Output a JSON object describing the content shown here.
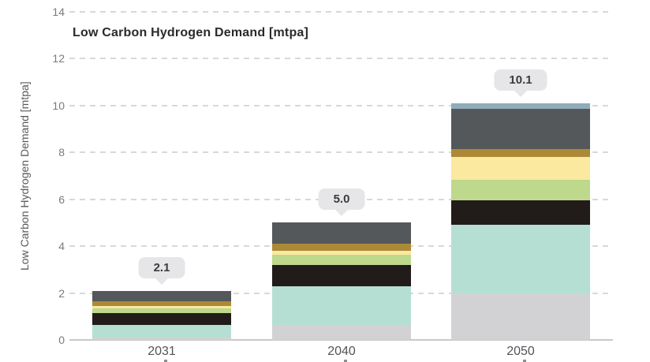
{
  "chart": {
    "title": "Low Carbon Hydrogen Demand [mtpa]",
    "y_axis_label": "Low Carbon Hydrogen Demand [mtpa]"
  },
  "chart_data": {
    "type": "bar",
    "stacked": true,
    "title": "Low Carbon Hydrogen Demand [mtpa]",
    "ylabel": "Low Carbon Hydrogen Demand [mtpa]",
    "xlabel": "",
    "categories": [
      "2031",
      "2040",
      "2050"
    ],
    "totals_labels": [
      "2.1",
      "5.0",
      "10.1"
    ],
    "totals": [
      2.1,
      5.0,
      10.1
    ],
    "ylim": [
      0,
      14
    ],
    "yticks": [
      0,
      2,
      4,
      6,
      8,
      10,
      12,
      14
    ],
    "grid": "horizontal-dashed",
    "legend_position": "none",
    "series": [
      {
        "name": "light-gray",
        "color": "#d2d2d4",
        "values": [
          0.1,
          0.6,
          2.0
        ]
      },
      {
        "name": "teal",
        "color": "#b6dfd4",
        "values": [
          0.55,
          1.7,
          2.9
        ]
      },
      {
        "name": "black",
        "color": "#211c1a",
        "values": [
          0.5,
          0.9,
          1.05
        ]
      },
      {
        "name": "green",
        "color": "#bed88c",
        "values": [
          0.2,
          0.45,
          0.9
        ]
      },
      {
        "name": "pale-yellow",
        "color": "#fbe9a0",
        "values": [
          0.1,
          0.15,
          0.95
        ]
      },
      {
        "name": "ochre",
        "color": "#ac8937",
        "values": [
          0.2,
          0.3,
          0.35
        ]
      },
      {
        "name": "dark-gray",
        "color": "#55585a",
        "values": [
          0.45,
          0.9,
          1.7
        ]
      },
      {
        "name": "blue-gray",
        "color": "#8facba",
        "values": [
          0.0,
          0.0,
          0.25
        ]
      }
    ],
    "style_colors": {
      "grid": "#d8d8da",
      "axis": "#c9c9cb",
      "tick_label": "#7a7b7d",
      "category_label": "#525456",
      "title": "#2b2a28",
      "callout_bg": "#e6e6e8",
      "callout_text": "#3b3b3d"
    }
  }
}
